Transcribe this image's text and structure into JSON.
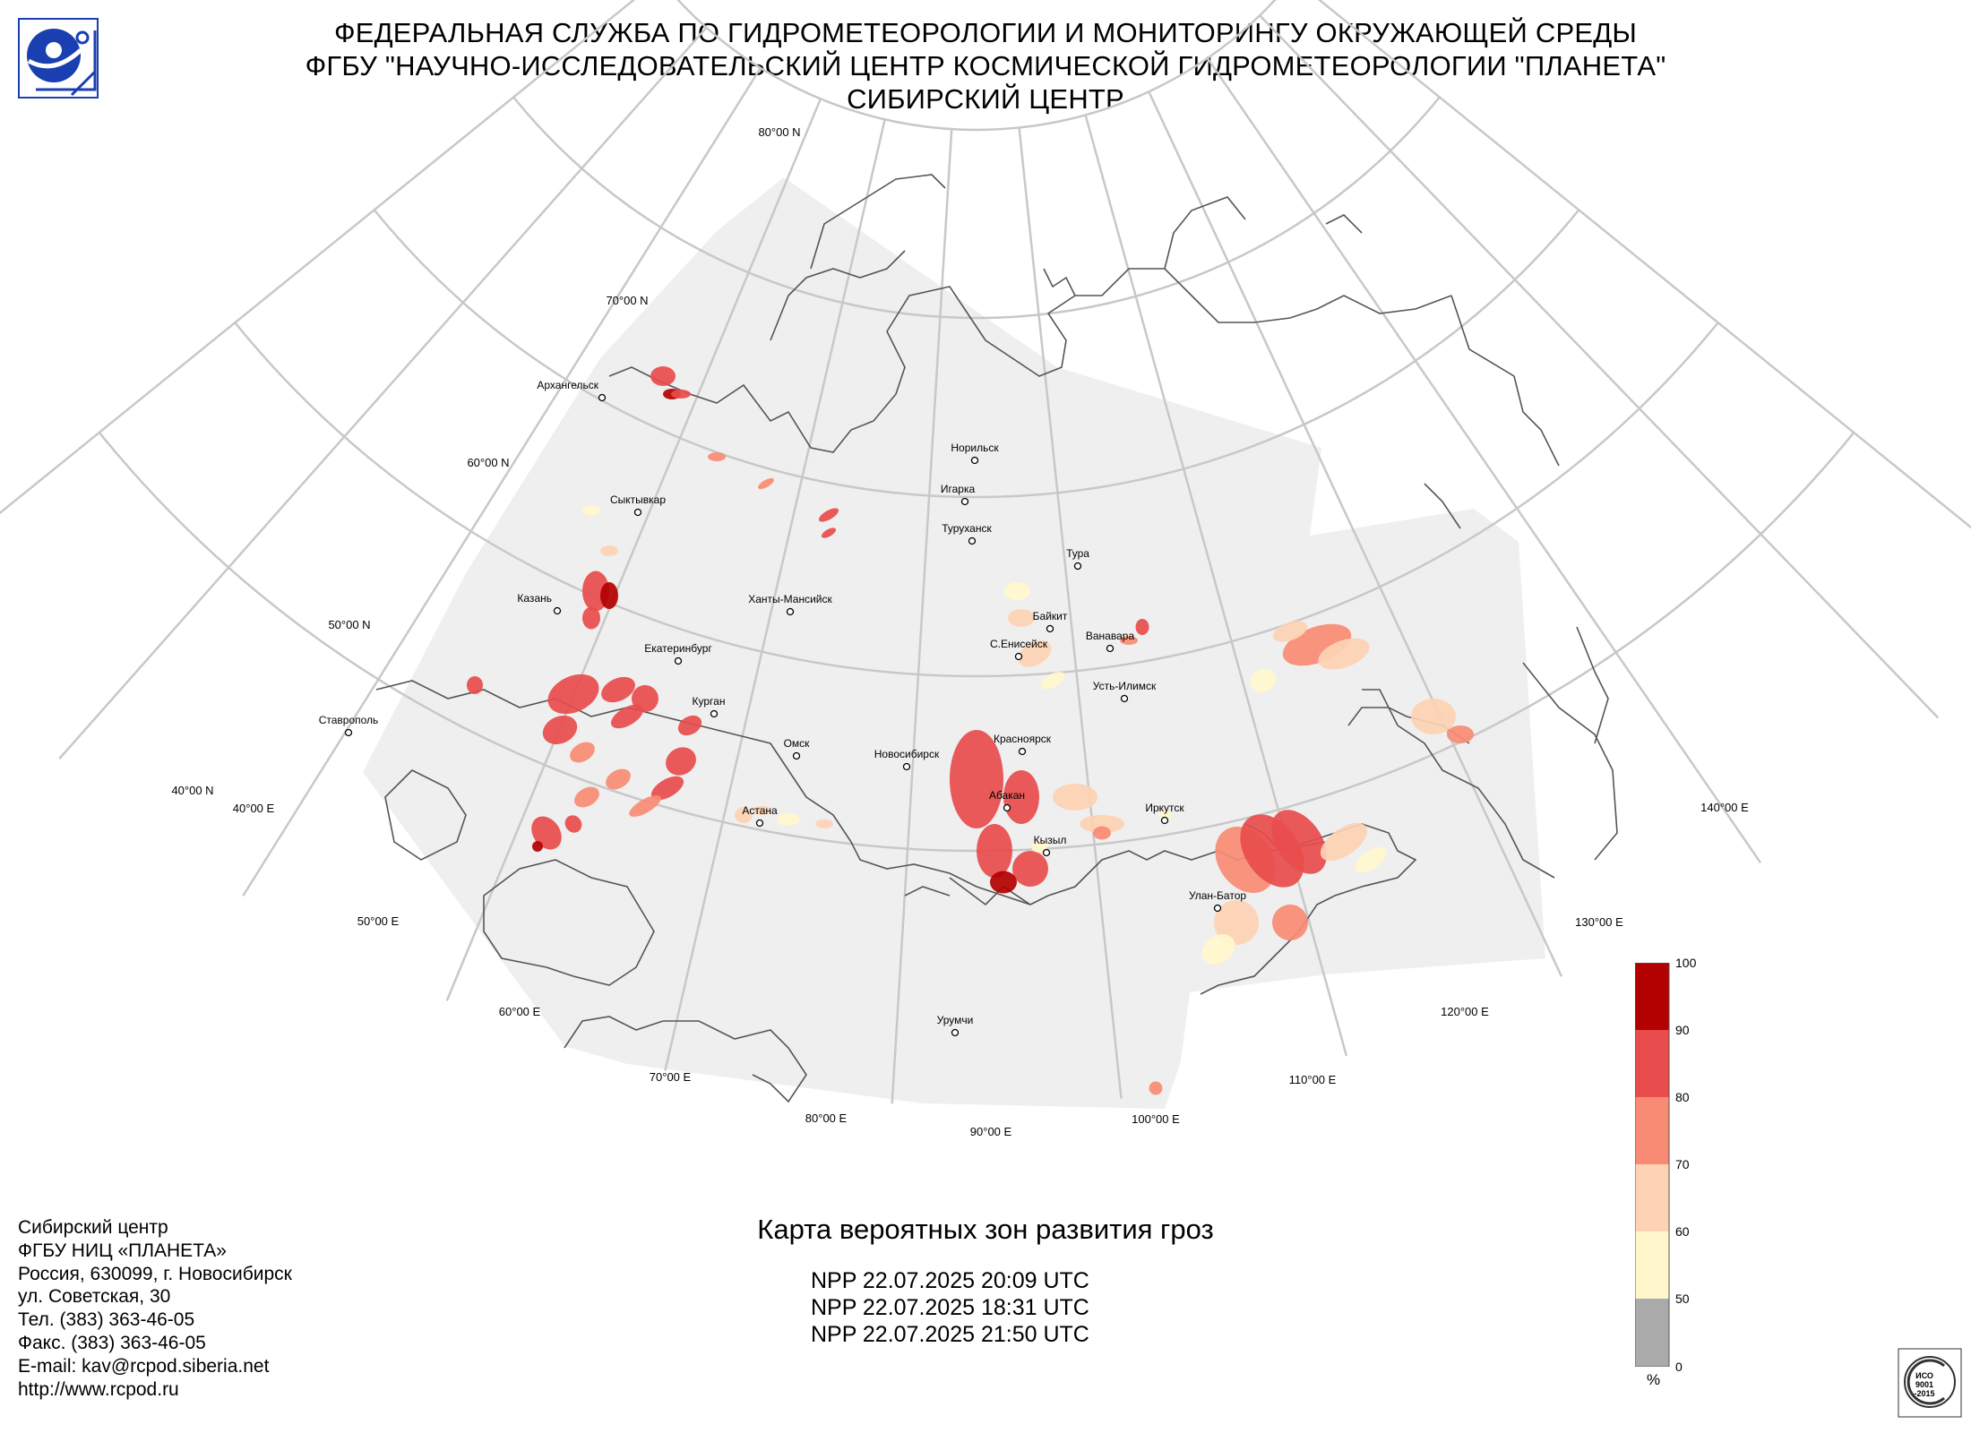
{
  "header": {
    "line1": "ФЕДЕРАЛЬНАЯ СЛУЖБА ПО ГИДРОМЕТЕОРОЛОГИИ И МОНИТОРИНГУ ОКРУЖАЮЩЕЙ СРЕДЫ",
    "line2": "ФГБУ \"НАУЧНО-ИССЛЕДОВАТЕЛЬСКИЙ ЦЕНТР КОСМИЧЕСКОЙ ГИДРОМЕТЕОРОЛОГИИ \"ПЛАНЕТА\"",
    "line3": "СИБИРСКИЙ ЦЕНТР"
  },
  "map": {
    "lat_labels": [
      "80°00 N",
      "70°00 N",
      "60°00 N",
      "50°00 N",
      "40°00 N"
    ],
    "lon_labels": [
      "40°00 E",
      "50°00 E",
      "60°00 E",
      "70°00 E",
      "80°00 E",
      "90°00 E",
      "100°00 E",
      "110°00 E",
      "120°00 E",
      "130°00 E",
      "140°00 E"
    ],
    "cities": [
      "Архангельск",
      "Сыктывкар",
      "Казань",
      "Екатеринбург",
      "Ханты-Мансийск",
      "Курган",
      "Омск",
      "Ставрополь",
      "Астана",
      "Новосибирск",
      "Норильск",
      "Игарка",
      "Туруханск",
      "Тура",
      "Байкит",
      "С.Енисейск",
      "Ванавара",
      "Усть-Илимск",
      "Красноярск",
      "Абакан",
      "Кызыл",
      "Иркутск",
      "Улан-Батор",
      "Урумчи"
    ],
    "colors": {
      "coverage": "#efefef",
      "grid": "#c8c8c8",
      "coast": "#555555"
    }
  },
  "colorbar": {
    "ticks": [
      "100",
      "90",
      "80",
      "70",
      "60",
      "50",
      "0"
    ],
    "unit": "%",
    "colors": [
      "#b30000",
      "#e84c4c",
      "#f98b74",
      "#fdd3b4",
      "#fff7cc",
      "#aaaaaa"
    ]
  },
  "footer": {
    "org_lines": [
      "Сибирский центр",
      "ФГБУ НИЦ «ПЛАНЕТА»",
      "Россия, 630099, г. Новосибирск",
      "ул. Советская, 30",
      "Тел. (383) 363-46-05",
      "Факс. (383) 363-46-05",
      "E-mail: kav@rcpod.siberia.net",
      "http://www.rcpod.ru"
    ],
    "product_title": "Карта вероятных зон развития гроз",
    "passes": [
      "NPP 22.07.2025  20:09 UTC",
      "NPP 22.07.2025  18:31 UTC",
      "NPP 22.07.2025  21:50 UTC"
    ]
  },
  "iso_badge": {
    "text1": "ИСО",
    "text2": "9001",
    "text3": "-2015"
  }
}
